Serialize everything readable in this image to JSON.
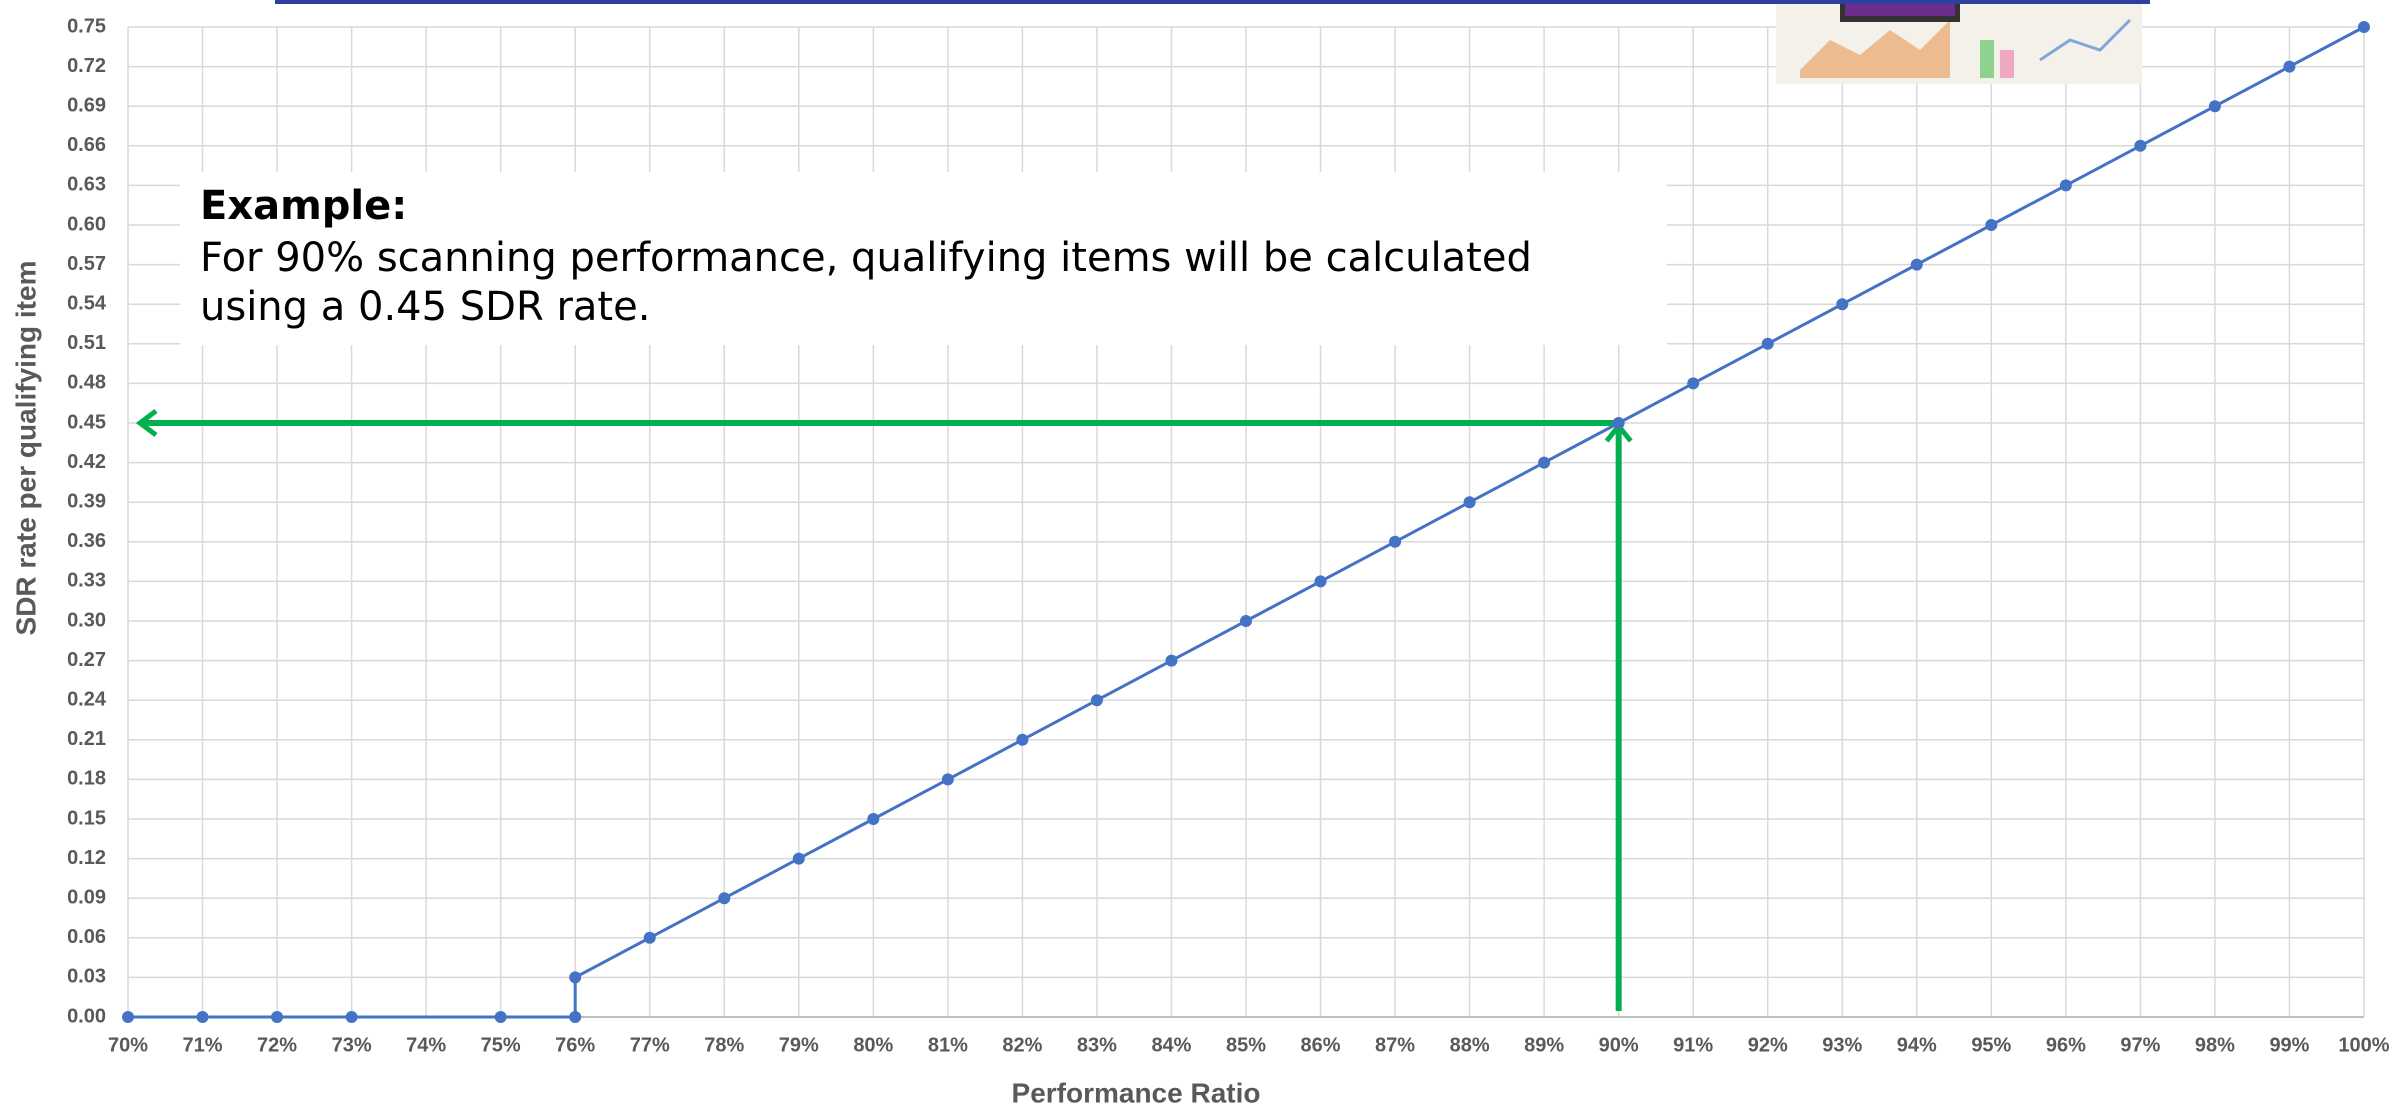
{
  "chart_data": {
    "type": "line",
    "x_label": "Performance Ratio",
    "y_label": "SDR rate per qualifying item",
    "x": [
      70,
      71,
      72,
      73,
      75,
      76,
      76,
      77,
      78,
      79,
      80,
      81,
      82,
      83,
      84,
      85,
      86,
      87,
      88,
      89,
      90,
      91,
      92,
      93,
      94,
      95,
      96,
      97,
      98,
      99,
      100
    ],
    "values": [
      0,
      0,
      0,
      0,
      0,
      0,
      0.03,
      0.06,
      0.09,
      0.12,
      0.15,
      0.18,
      0.21,
      0.24,
      0.27,
      0.3,
      0.33,
      0.36,
      0.39,
      0.42,
      0.45,
      0.48,
      0.51,
      0.54,
      0.57,
      0.6,
      0.63,
      0.66,
      0.69,
      0.72,
      0.75
    ],
    "color": "#4472c4",
    "xlim": [
      70,
      100
    ],
    "ylim": [
      0,
      0.75
    ],
    "xticks": [
      {
        "value": 70,
        "label": "70%"
      },
      {
        "value": 71,
        "label": "71%"
      },
      {
        "value": 72,
        "label": "72%"
      },
      {
        "value": 73,
        "label": "73%"
      },
      {
        "value": 74,
        "label": "74%"
      },
      {
        "value": 75,
        "label": "75%"
      },
      {
        "value": 76,
        "label": "76%"
      },
      {
        "value": 77,
        "label": "77%"
      },
      {
        "value": 78,
        "label": "78%"
      },
      {
        "value": 79,
        "label": "79%"
      },
      {
        "value": 80,
        "label": "80%"
      },
      {
        "value": 81,
        "label": "81%"
      },
      {
        "value": 82,
        "label": "82%"
      },
      {
        "value": 83,
        "label": "83%"
      },
      {
        "value": 84,
        "label": "84%"
      },
      {
        "value": 85,
        "label": "85%"
      },
      {
        "value": 86,
        "label": "86%"
      },
      {
        "value": 87,
        "label": "87%"
      },
      {
        "value": 88,
        "label": "88%"
      },
      {
        "value": 89,
        "label": "89%"
      },
      {
        "value": 90,
        "label": "90%"
      },
      {
        "value": 91,
        "label": "91%"
      },
      {
        "value": 92,
        "label": "92%"
      },
      {
        "value": 93,
        "label": "93%"
      },
      {
        "value": 94,
        "label": "94%"
      },
      {
        "value": 95,
        "label": "95%"
      },
      {
        "value": 96,
        "label": "96%"
      },
      {
        "value": 97,
        "label": "97%"
      },
      {
        "value": 98,
        "label": "98%"
      },
      {
        "value": 99,
        "label": "99%"
      },
      {
        "value": 100,
        "label": "100%"
      }
    ],
    "yticks": [
      {
        "value": 0,
        "label": "0.00"
      },
      0.03,
      0.06,
      0.09,
      0.12,
      0.15,
      0.18,
      0.21,
      0.24,
      0.27,
      {
        "value": 0.3,
        "label": "0.30"
      },
      0.33,
      0.36,
      0.39,
      0.42,
      0.45,
      0.48,
      0.51,
      0.54,
      0.57,
      {
        "value": 0.6,
        "label": "0.60"
      },
      0.63,
      0.66,
      0.69,
      0.72,
      0.75
    ],
    "grid": true,
    "annotation": {
      "title": "Example:",
      "lines": [
        "For 90% scanning performance, qualifying items will be calculated",
        "using a 0.45 SDR rate."
      ]
    },
    "highlight": {
      "x": 90,
      "y": 0.45,
      "color": "#00b050"
    }
  }
}
